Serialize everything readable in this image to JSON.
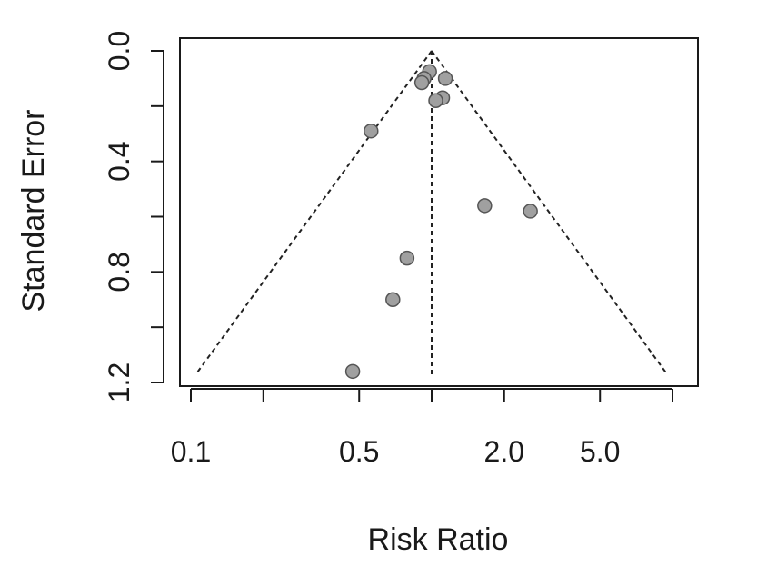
{
  "chart_data": {
    "type": "scatter",
    "title": "",
    "xlabel": "Risk Ratio",
    "ylabel": "Standard Error",
    "x_scale": "log",
    "x_range": [
      0.1,
      10
    ],
    "y_range": [
      0.0,
      1.2
    ],
    "y_reversed": true,
    "x_ticks": [
      0.1,
      0.2,
      0.5,
      1.0,
      2.0,
      5.0,
      10
    ],
    "x_tick_labels": [
      "0.1",
      "",
      "0.5",
      "",
      "2.0",
      "5.0",
      ""
    ],
    "y_ticks": [
      0.0,
      0.2,
      0.4,
      0.6,
      0.8,
      1.0,
      1.2
    ],
    "y_tick_labels": [
      "0.0",
      "",
      "0.4",
      "",
      "0.8",
      "",
      "1.2"
    ],
    "pooled_estimate": 1.0,
    "funnel_apex_se": 0.0,
    "funnel_base_se": 1.17,
    "funnel_base_x": [
      0.105,
      9.5
    ],
    "grid": false,
    "legend": "none",
    "point_color": "#a0a0a0",
    "point_edge_color": "#555555",
    "line_color": "#222222",
    "points": [
      {
        "x": 0.98,
        "y": 0.075
      },
      {
        "x": 0.93,
        "y": 0.1
      },
      {
        "x": 0.91,
        "y": 0.115
      },
      {
        "x": 1.14,
        "y": 0.1
      },
      {
        "x": 1.11,
        "y": 0.17
      },
      {
        "x": 1.04,
        "y": 0.18
      },
      {
        "x": 0.56,
        "y": 0.29
      },
      {
        "x": 1.66,
        "y": 0.56
      },
      {
        "x": 2.57,
        "y": 0.58
      },
      {
        "x": 0.79,
        "y": 0.75
      },
      {
        "x": 0.69,
        "y": 0.9
      },
      {
        "x": 0.47,
        "y": 1.16
      }
    ]
  }
}
